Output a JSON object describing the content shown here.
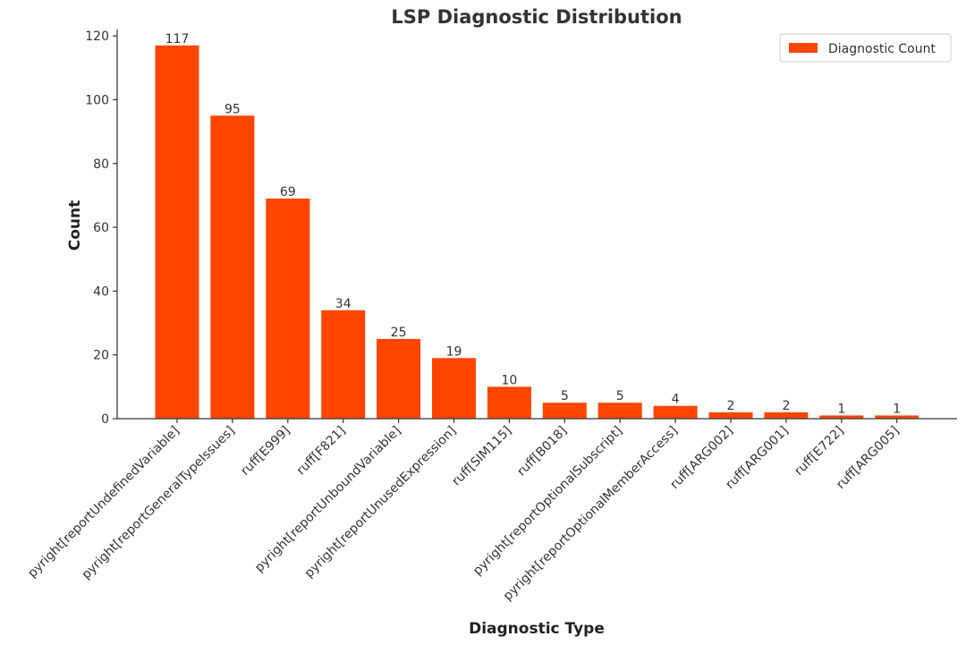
{
  "chart_data": {
    "type": "bar",
    "title": "LSP Diagnostic Distribution",
    "xlabel": "Diagnostic Type",
    "ylabel": "Count",
    "ylim": [
      0,
      122
    ],
    "yticks": [
      0,
      20,
      40,
      60,
      80,
      100,
      120
    ],
    "grid": false,
    "legend_position": "top-right",
    "bar_color": "#ff4500",
    "categories": [
      "pyright[reportUndefinedVariable]",
      "pyright[reportGeneralTypeIssues]",
      "ruff[E999]",
      "ruff[F821]",
      "pyright[reportUnboundVariable]",
      "pyright[reportUnusedExpression]",
      "ruff[SIM115]",
      "ruff[B018]",
      "pyright[reportOptionalSubscript]",
      "pyright[reportOptionalMemberAccess]",
      "ruff[ARG002]",
      "ruff[ARG001]",
      "ruff[E722]",
      "ruff[ARG005]"
    ],
    "series": [
      {
        "name": "Diagnostic Count",
        "values": [
          117,
          95,
          69,
          34,
          25,
          19,
          10,
          5,
          5,
          4,
          2,
          2,
          1,
          1
        ]
      }
    ]
  }
}
